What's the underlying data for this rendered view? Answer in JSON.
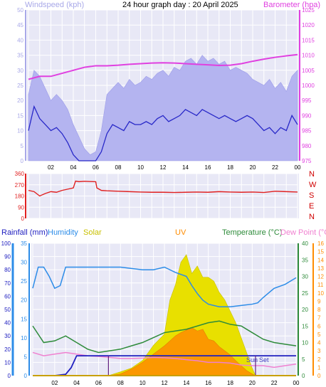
{
  "header": {
    "title": "24 hour graph day : 20 April 2025",
    "left_label": "Windspeed (kph)",
    "right_label": "Barometer (hpa)"
  },
  "bottom_header": {
    "rainfall": "Rainfall (mm)",
    "humidity": "Humidity",
    "solar": "Solar",
    "uv": "UV",
    "temperature": "Temperature (°C)",
    "dewpoint": "Dew Point (°C)"
  },
  "time_ticks": [
    "02",
    "04",
    "06",
    "08",
    "10",
    "12",
    "14",
    "16",
    "18",
    "20",
    "22",
    "00"
  ],
  "sun_labels": {
    "sunrise": "Sun",
    "sunset": "Set"
  },
  "colors": {
    "panel_bg": "#e8e8f6",
    "grid": "#ffffff",
    "wind_avg": "#2828c8",
    "wind_gust": "#b4b4f0",
    "barometer": "#e040e0",
    "direction": "#e02020",
    "humidity": "#2c8ce8",
    "temperature": "#2e8b3a",
    "dewpoint": "#f080d0",
    "solar": "#e8e000",
    "uv": "#ff8c00",
    "rain": "#2020c0",
    "compass": "#d00000"
  },
  "chart_data": [
    {
      "type": "line",
      "title": "24 hour graph day : 20 April 2025",
      "x_unit": "hour",
      "xlim": [
        0,
        24
      ],
      "left_axis": {
        "label": "Windspeed (kph)",
        "ylim": [
          0,
          50
        ],
        "ticks": [
          0,
          5,
          10,
          15,
          20,
          25,
          30,
          35,
          40,
          45,
          50
        ]
      },
      "right_axis": {
        "label": "Barometer (hpa)",
        "ylim": [
          975,
          1025
        ],
        "ticks": [
          975,
          980,
          985,
          990,
          995,
          1000,
          1005,
          1010,
          1015,
          1020,
          1025
        ]
      },
      "series": [
        {
          "name": "Wind gust",
          "axis": "left",
          "x": [
            0,
            0.5,
            1,
            1.5,
            2,
            2.5,
            3,
            3.5,
            4,
            4.5,
            5,
            5.5,
            6,
            6.5,
            7,
            7.5,
            8,
            8.5,
            9,
            9.5,
            10,
            10.5,
            11,
            11.5,
            12,
            12.5,
            13,
            13.5,
            14,
            14.5,
            15,
            15.5,
            16,
            16.5,
            17,
            17.5,
            18,
            18.5,
            19,
            19.5,
            20,
            20.5,
            21,
            21.5,
            22,
            22.5,
            23,
            23.5,
            24
          ],
          "values": [
            22,
            30,
            28,
            24,
            20,
            22,
            20,
            17,
            12,
            8,
            4,
            2,
            3,
            10,
            22,
            24,
            26,
            24,
            27,
            25,
            26,
            28,
            27,
            29,
            30,
            28,
            31,
            30,
            33,
            34,
            32,
            35,
            33,
            34,
            32,
            33,
            30,
            31,
            30,
            29,
            27,
            26,
            25,
            27,
            24,
            26,
            23,
            28,
            30
          ]
        },
        {
          "name": "Wind average",
          "axis": "left",
          "x": [
            0,
            0.5,
            1,
            1.5,
            2,
            2.5,
            3,
            3.5,
            4,
            4.5,
            5,
            5.5,
            6,
            6.5,
            7,
            7.5,
            8,
            8.5,
            9,
            9.5,
            10,
            10.5,
            11,
            11.5,
            12,
            12.5,
            13,
            13.5,
            14,
            14.5,
            15,
            15.5,
            16,
            16.5,
            17,
            17.5,
            18,
            18.5,
            19,
            19.5,
            20,
            20.5,
            21,
            21.5,
            22,
            22.5,
            23,
            23.5,
            24
          ],
          "values": [
            10,
            18,
            14,
            12,
            10,
            11,
            9,
            6,
            2,
            0,
            0,
            0,
            0,
            3,
            9,
            12,
            11,
            10,
            13,
            12,
            12,
            13,
            12,
            14,
            15,
            13,
            14,
            15,
            17,
            16,
            15,
            17,
            16,
            15,
            14,
            15,
            14,
            13,
            14,
            15,
            14,
            12,
            10,
            11,
            9,
            11,
            10,
            15,
            12
          ]
        },
        {
          "name": "Barometer",
          "axis": "right",
          "x": [
            0,
            1,
            2,
            3,
            4,
            5,
            6,
            7,
            8,
            9,
            10,
            11,
            12,
            13,
            14,
            15,
            16,
            17,
            18,
            19,
            20,
            21,
            22,
            23,
            24
          ],
          "values": [
            1002,
            1003,
            1003,
            1004,
            1005,
            1006,
            1006.5,
            1006.5,
            1006.7,
            1007,
            1007.2,
            1007.4,
            1007.5,
            1007.4,
            1007.2,
            1007,
            1006.8,
            1006.6,
            1006.7,
            1007.2,
            1008,
            1008.7,
            1009.3,
            1009.8,
            1010.2
          ]
        }
      ]
    },
    {
      "type": "line",
      "title": "",
      "x_unit": "hour",
      "xlim": [
        0,
        24
      ],
      "y_axis": {
        "ylim": [
          0,
          360
        ],
        "ticks": [
          0,
          90,
          180,
          270,
          360
        ]
      },
      "compass_labels": [
        "N",
        "W",
        "S",
        "E",
        "N"
      ],
      "series": [
        {
          "name": "Wind direction",
          "x": [
            0,
            0.5,
            1,
            1.5,
            2,
            2.5,
            3,
            3.5,
            4,
            4.2,
            4.5,
            5,
            5.5,
            6,
            6.1,
            6.5,
            7,
            8,
            9,
            10,
            11,
            12,
            13,
            14,
            15,
            16,
            17,
            18,
            19,
            20,
            21,
            22,
            23,
            24
          ],
          "values": [
            225,
            215,
            180,
            200,
            215,
            210,
            225,
            235,
            245,
            300,
            295,
            298,
            296,
            295,
            245,
            225,
            222,
            218,
            215,
            212,
            210,
            210,
            208,
            210,
            212,
            210,
            215,
            212,
            210,
            212,
            208,
            218,
            215,
            212
          ]
        }
      ]
    },
    {
      "type": "line",
      "title": "",
      "x_unit": "hour",
      "xlim": [
        0,
        24
      ],
      "axes": {
        "rainfall": {
          "label": "Rainfall (mm)",
          "ylim": [
            0,
            10
          ],
          "ticks": [
            0,
            1,
            2,
            3,
            4,
            5,
            6,
            7,
            8,
            9,
            10
          ]
        },
        "humidity": {
          "label": "Humidity",
          "ylim": [
            0,
            100
          ],
          "ticks": [
            0,
            10,
            20,
            30,
            40,
            50,
            60,
            70,
            80,
            90,
            100
          ]
        },
        "solar": {
          "label": "Solar",
          "ylim": [
            0,
            35
          ],
          "ticks": [
            0,
            5,
            10,
            15,
            20,
            25,
            30,
            35
          ]
        },
        "temperature": {
          "label": "Temperature (°C)",
          "ylim": [
            0,
            40
          ],
          "ticks": [
            0,
            5,
            10,
            15,
            20,
            25,
            30,
            35,
            40
          ]
        },
        "dewpoint": {
          "label": "Dew Point (°C)",
          "ylim": [
            0,
            16
          ],
          "ticks": [
            0,
            1,
            2,
            3,
            4,
            5,
            6,
            7,
            8,
            9,
            10,
            11,
            12,
            13,
            14,
            15,
            16
          ]
        }
      },
      "sunrise_hour": 6.9,
      "sunset_hour": 20.3,
      "series": [
        {
          "name": "Humidity",
          "axis": "humidity",
          "x": [
            0,
            0.5,
            1,
            1.5,
            2,
            2.5,
            3,
            4,
            5,
            6,
            7,
            8,
            9,
            10,
            11,
            12,
            13,
            14,
            14.5,
            15,
            15.5,
            16,
            17,
            18,
            19,
            20,
            20.5,
            21,
            22,
            23,
            24
          ],
          "values": [
            66,
            82,
            82,
            75,
            66,
            68,
            82,
            82,
            82,
            82,
            82,
            82,
            81,
            80,
            80,
            82,
            78,
            75,
            68,
            62,
            57,
            54,
            52,
            52,
            53,
            54,
            55,
            59,
            66,
            69,
            74
          ]
        },
        {
          "name": "Solar",
          "axis": "solar",
          "x": [
            6.9,
            8,
            9,
            10,
            11,
            12,
            12.5,
            13,
            13.5,
            14,
            14.5,
            15,
            15.5,
            16,
            16.5,
            17,
            17.5,
            18,
            18.5,
            19,
            19.5,
            20,
            20.3
          ],
          "values": [
            0,
            1,
            2,
            4,
            8,
            11,
            20,
            24,
            30,
            32,
            27,
            29,
            26,
            26,
            25,
            22,
            20,
            17,
            14,
            10,
            6,
            2,
            0
          ]
        },
        {
          "name": "UV",
          "axis": "dewpoint",
          "x": [
            6.9,
            8,
            9,
            10,
            11,
            12,
            12.5,
            13,
            13.5,
            14,
            14.5,
            15,
            15.5,
            16,
            16.5,
            17,
            17.5,
            18,
            18.5,
            19,
            19.5,
            20,
            20.3
          ],
          "values": [
            0,
            0.2,
            0.8,
            1.6,
            2.6,
            3.6,
            4.2,
            4.8,
            5.2,
            5.5,
            5.8,
            5.4,
            5.6,
            4.4,
            4.2,
            3.5,
            3,
            2.5,
            1.8,
            1.2,
            0.6,
            0.2,
            0
          ]
        },
        {
          "name": "Temperature",
          "axis": "temperature",
          "x": [
            0,
            1,
            2,
            3,
            4,
            5,
            6,
            7,
            8,
            9,
            10,
            11,
            12,
            13,
            14,
            15,
            16,
            17,
            18,
            19,
            20,
            21,
            22,
            23,
            24
          ],
          "values": [
            15,
            10,
            10.5,
            12,
            10,
            8,
            7,
            7.5,
            8,
            9,
            10,
            11.5,
            13,
            13.5,
            14,
            15,
            16,
            16.5,
            15.5,
            15,
            13,
            11,
            10,
            9.5,
            9
          ]
        },
        {
          "name": "Dew Point",
          "axis": "temperature",
          "x": [
            0,
            1,
            2,
            3,
            4,
            5,
            6,
            7,
            8,
            9,
            10,
            11,
            12,
            13,
            14,
            15,
            16,
            17,
            18,
            19,
            20,
            21,
            22,
            23,
            24
          ],
          "values": [
            7,
            6,
            6.5,
            7,
            6.5,
            6,
            5.8,
            5.5,
            5.2,
            5.2,
            5.3,
            5.5,
            5.4,
            5.2,
            4.8,
            4.5,
            4,
            4,
            3.8,
            3.2,
            3,
            3,
            2.5,
            3,
            3.5
          ]
        },
        {
          "name": "Rainfall",
          "axis": "rainfall",
          "x": [
            0,
            1,
            2,
            3,
            3.5,
            4,
            5,
            6,
            7,
            8,
            9,
            10,
            11,
            12,
            13,
            14,
            15,
            16,
            17,
            18,
            19,
            20,
            21,
            22,
            23,
            24
          ],
          "values": [
            0,
            0,
            0,
            0.1,
            0.6,
            1.5,
            1.5,
            1.5,
            1.5,
            1.5,
            1.5,
            1.5,
            1.5,
            1.5,
            1.5,
            1.5,
            1.5,
            1.5,
            1.5,
            1.5,
            1.5,
            1.5,
            1.5,
            1.5,
            1.5,
            1.5
          ]
        }
      ]
    }
  ]
}
